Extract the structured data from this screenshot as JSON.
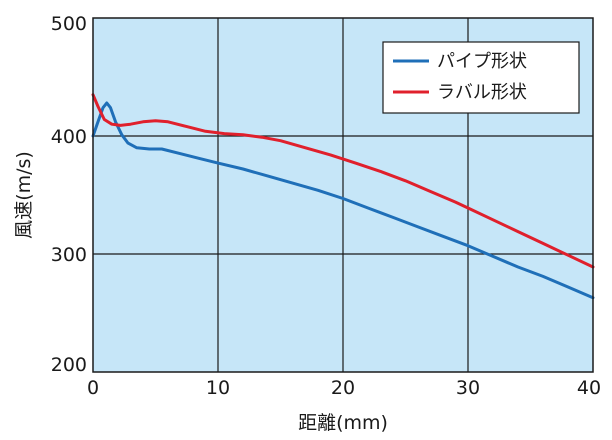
{
  "chart_data": {
    "type": "line",
    "title": "",
    "xlabel": "距離(mm)",
    "ylabel": "風速(m/s)",
    "xlim": [
      0,
      40
    ],
    "ylim": [
      200,
      500
    ],
    "x_ticks": [
      0,
      10,
      20,
      30,
      40
    ],
    "y_ticks": [
      200,
      300,
      400,
      500
    ],
    "x_tick_labels": [
      "0",
      "10",
      "20",
      "30",
      "40"
    ],
    "y_tick_labels": [
      "200",
      "300",
      "400",
      "500"
    ],
    "grid": true,
    "legend_position": "top-right",
    "plot_background": "#c6e6f8",
    "grid_color": "#1a1a1a",
    "series": [
      {
        "name": "パイプ形状",
        "color": "#1f6fb8",
        "points": [
          [
            0,
            400
          ],
          [
            0.4,
            412
          ],
          [
            0.8,
            424
          ],
          [
            1.1,
            428
          ],
          [
            1.4,
            424
          ],
          [
            1.8,
            412
          ],
          [
            2.3,
            401
          ],
          [
            2.8,
            394
          ],
          [
            3.5,
            390
          ],
          [
            4.5,
            389
          ],
          [
            5.5,
            389
          ],
          [
            7,
            385
          ],
          [
            8.5,
            381
          ],
          [
            10,
            377
          ],
          [
            12,
            372
          ],
          [
            14,
            366
          ],
          [
            16,
            360
          ],
          [
            18,
            354
          ],
          [
            20,
            347
          ],
          [
            22,
            339
          ],
          [
            24,
            331
          ],
          [
            26,
            323
          ],
          [
            28,
            315
          ],
          [
            30,
            307
          ],
          [
            32,
            298
          ],
          [
            34,
            289
          ],
          [
            36,
            281
          ],
          [
            38,
            272
          ],
          [
            40,
            263
          ]
        ]
      },
      {
        "name": "ラバル形状",
        "color": "#e0202c",
        "points": [
          [
            0,
            435
          ],
          [
            0.4,
            425
          ],
          [
            0.9,
            414
          ],
          [
            1.5,
            410
          ],
          [
            2.2,
            409
          ],
          [
            3,
            410
          ],
          [
            4,
            412
          ],
          [
            5,
            413
          ],
          [
            6,
            412
          ],
          [
            7.5,
            408
          ],
          [
            9,
            404
          ],
          [
            10.5,
            402
          ],
          [
            12,
            401
          ],
          [
            13.5,
            399
          ],
          [
            15,
            396
          ],
          [
            17,
            390
          ],
          [
            19,
            384
          ],
          [
            21,
            377
          ],
          [
            23,
            370
          ],
          [
            25,
            362
          ],
          [
            27,
            353
          ],
          [
            29,
            344
          ],
          [
            30,
            339
          ],
          [
            32,
            329
          ],
          [
            34,
            319
          ],
          [
            36,
            309
          ],
          [
            38,
            299
          ],
          [
            40,
            289
          ]
        ]
      }
    ]
  }
}
